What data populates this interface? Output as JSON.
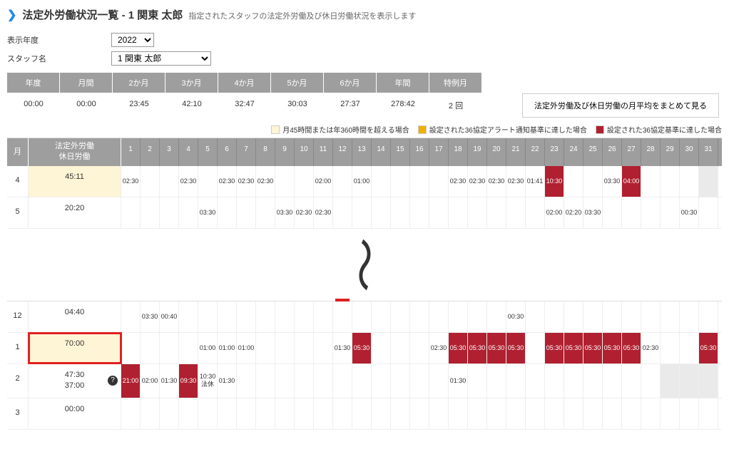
{
  "colors": {
    "header_bg": "#9e9e9e",
    "header_fg": "#ffffff",
    "accent": "#1e88e5",
    "warn_yellow": "#fef5d6",
    "alert_red": "#b02030",
    "gray_cell": "#eaeaea",
    "outline_red": "#e02020"
  },
  "header": {
    "title": "法定外労働状況一覧 - 1 関東 太郎",
    "subtitle": "指定されたスタッフの法定外労働及び休日労働状況を表示します"
  },
  "filters": {
    "year_label": "表示年度",
    "year_value": "2022",
    "staff_label": "スタッフ名",
    "staff_value": "1 関東 太郎"
  },
  "summary": {
    "headers": [
      "年度",
      "月間",
      "2か月",
      "3か月",
      "4か月",
      "5か月",
      "6か月",
      "年間",
      "特例月"
    ],
    "values": [
      "00:00",
      "00:00",
      "23:45",
      "42:10",
      "32:47",
      "30:03",
      "27:37",
      "278:42",
      "2 回"
    ],
    "avg_button": "法定外労働及び休日労働の月平均をまとめて見る"
  },
  "legend": {
    "items": [
      {
        "color": "#fef5d6",
        "label": "月45時間または年360時間を超える場合"
      },
      {
        "color": "#f0b000",
        "label": "設定された36協定アラート通知基準に達した場合"
      },
      {
        "color": "#b02030",
        "label": "設定された36協定基準に達した場合"
      }
    ]
  },
  "grid": {
    "month_header": "月",
    "total_header_line1": "法定外労働",
    "total_header_line2": "休日労働",
    "day_count": 31,
    "rows_top": [
      {
        "month": "4",
        "total": [
          "45:11"
        ],
        "total_hl": "yellow",
        "cells": {
          "1": {
            "v": "02:30"
          },
          "4": {
            "v": "02:30"
          },
          "6": {
            "v": "02:30"
          },
          "7": {
            "v": "02:30"
          },
          "8": {
            "v": "02:30"
          },
          "11": {
            "v": "02:00"
          },
          "13": {
            "v": "01:00"
          },
          "18": {
            "v": "02:30"
          },
          "19": {
            "v": "02:30"
          },
          "20": {
            "v": "02:30"
          },
          "21": {
            "v": "02:30"
          },
          "22": {
            "v": "01:41"
          },
          "23": {
            "v": "10:30",
            "hl": "red"
          },
          "26": {
            "v": "03:30"
          },
          "27": {
            "v": "04:00",
            "hl": "red"
          },
          "31": {
            "hl": "gray"
          }
        }
      },
      {
        "month": "5",
        "total": [
          "20:20"
        ],
        "cells": {
          "5": {
            "v": "03:30"
          },
          "9": {
            "v": "03:30"
          },
          "10": {
            "v": "02:30"
          },
          "11": {
            "v": "02:30"
          },
          "23": {
            "v": "02:00"
          },
          "24": {
            "v": "02:20"
          },
          "25": {
            "v": "03:30"
          },
          "30": {
            "v": "00:30"
          }
        }
      }
    ],
    "rows_bottom": [
      {
        "month": "12",
        "total": [
          "04:40"
        ],
        "cells": {
          "2": {
            "v": "03:30"
          },
          "3": {
            "v": "00:40"
          },
          "12": {
            "marker": true
          },
          "21": {
            "v": "00:30"
          }
        }
      },
      {
        "month": "1",
        "total": [
          "70:00"
        ],
        "total_hl": "yellow",
        "total_box": true,
        "cells": {
          "5": {
            "v": "01:00"
          },
          "6": {
            "v": "01:00"
          },
          "7": {
            "v": "01:00"
          },
          "12": {
            "v": "01:30"
          },
          "13": {
            "v": "05:30",
            "hl": "red"
          },
          "17": {
            "v": "02:30"
          },
          "18": {
            "v": "05:30",
            "hl": "red"
          },
          "19": {
            "v": "05:30",
            "hl": "red"
          },
          "20": {
            "v": "05:30",
            "hl": "red"
          },
          "21": {
            "v": "05:30",
            "hl": "red"
          },
          "23": {
            "v": "05:30",
            "hl": "red"
          },
          "24": {
            "v": "05:30",
            "hl": "red"
          },
          "25": {
            "v": "05:30",
            "hl": "red"
          },
          "26": {
            "v": "05:30",
            "hl": "red"
          },
          "27": {
            "v": "05:30",
            "hl": "red"
          },
          "28": {
            "v": "02:30"
          },
          "31": {
            "v": "05:30",
            "hl": "red"
          }
        }
      },
      {
        "month": "2",
        "total": [
          "47:30",
          "37:00"
        ],
        "total_q": true,
        "cells": {
          "1": {
            "v": "21:00",
            "hl": "red"
          },
          "2": {
            "v": "02:00"
          },
          "3": {
            "v": "01:30"
          },
          "4": {
            "v": "09:30",
            "hl": "red"
          },
          "5": {
            "v": "10:30",
            "v2": "法休"
          },
          "6": {
            "v": "01:30"
          },
          "18": {
            "v": "01:30"
          },
          "29": {
            "hl": "gray"
          },
          "30": {
            "hl": "gray"
          },
          "31": {
            "hl": "gray"
          }
        }
      },
      {
        "month": "3",
        "total": [
          "00:00"
        ],
        "cells": {}
      }
    ]
  }
}
